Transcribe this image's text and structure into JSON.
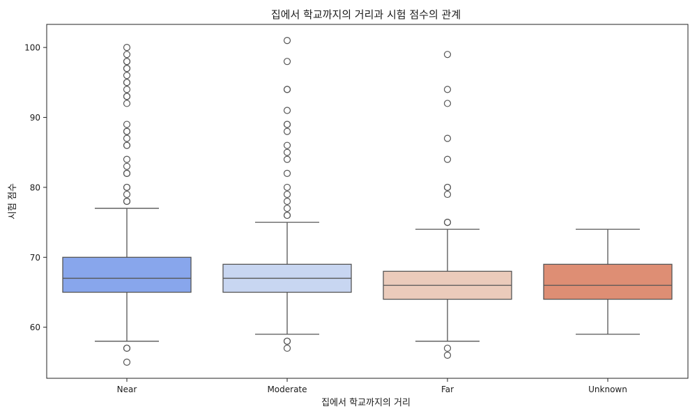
{
  "chart_data": {
    "type": "box",
    "title": "집에서 학교까지의 거리과 시험 점수의 관계",
    "xlabel": "집에서 학교까지의 거리",
    "ylabel": "시험 점수",
    "ylim": [
      52.7,
      103.3
    ],
    "yticks": [
      60,
      70,
      80,
      90,
      100
    ],
    "grid": false,
    "categories": [
      "Near",
      "Moderate",
      "Far",
      "Unknown"
    ],
    "colors": [
      "#88a6ec",
      "#c8d6f1",
      "#ebcbbb",
      "#de8e74"
    ],
    "boxes": [
      {
        "category": "Near",
        "q1": 65,
        "median": 67,
        "q3": 70,
        "whisker_low": 58,
        "whisker_high": 77,
        "outliers": [
          55,
          57,
          57,
          78,
          78,
          79,
          80,
          80,
          82,
          82,
          83,
          84,
          86,
          86,
          87,
          88,
          88,
          89,
          92,
          93,
          93,
          94,
          95,
          95,
          96,
          97,
          97,
          98,
          98,
          99,
          100
        ]
      },
      {
        "category": "Moderate",
        "q1": 65,
        "median": 67,
        "q3": 69,
        "whisker_low": 59,
        "whisker_high": 75,
        "outliers": [
          57,
          58,
          58,
          76,
          76,
          77,
          78,
          79,
          80,
          82,
          84,
          85,
          86,
          88,
          89,
          89,
          91,
          94,
          94,
          98,
          101
        ]
      },
      {
        "category": "Far",
        "q1": 64,
        "median": 66,
        "q3": 68,
        "whisker_low": 58,
        "whisker_high": 74,
        "outliers": [
          56,
          57,
          75,
          75,
          79,
          80,
          80,
          84,
          87,
          92,
          94,
          99
        ]
      },
      {
        "category": "Unknown",
        "q1": 64,
        "median": 66,
        "q3": 69,
        "whisker_low": 59,
        "whisker_high": 74,
        "outliers": []
      }
    ]
  }
}
